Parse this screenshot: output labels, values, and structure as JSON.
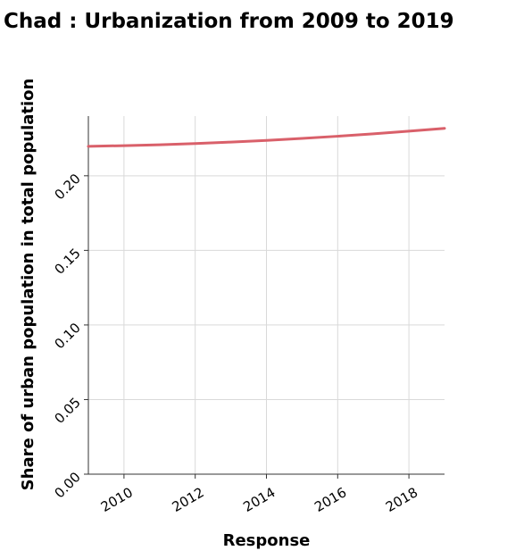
{
  "chart_data": {
    "type": "line",
    "title": "Chad : Urbanization from 2009 to 2019",
    "xlabel": "Response",
    "ylabel": "Share of urban population in total population",
    "xlim": [
      2009,
      2019
    ],
    "ylim": [
      0,
      0.24
    ],
    "x_ticks": [
      2010,
      2012,
      2014,
      2016,
      2018
    ],
    "x_tick_labels": [
      "2010",
      "2012",
      "2014",
      "2016",
      "2018"
    ],
    "y_ticks": [
      0,
      0.05,
      0.1,
      0.15,
      0.2
    ],
    "y_tick_labels": [
      "0.00",
      "0.05",
      "0.10",
      "0.15",
      "0.20"
    ],
    "grid": true,
    "legend": "none",
    "series": [
      {
        "color": "#d9606a",
        "x": [
          2009,
          2010,
          2011,
          2012,
          2013,
          2014,
          2015,
          2016,
          2017,
          2018,
          2019
        ],
        "values": [
          0.2197,
          0.2202,
          0.2208,
          0.2216,
          0.2226,
          0.2237,
          0.225,
          0.2265,
          0.2281,
          0.2299,
          0.2318
        ]
      }
    ]
  }
}
